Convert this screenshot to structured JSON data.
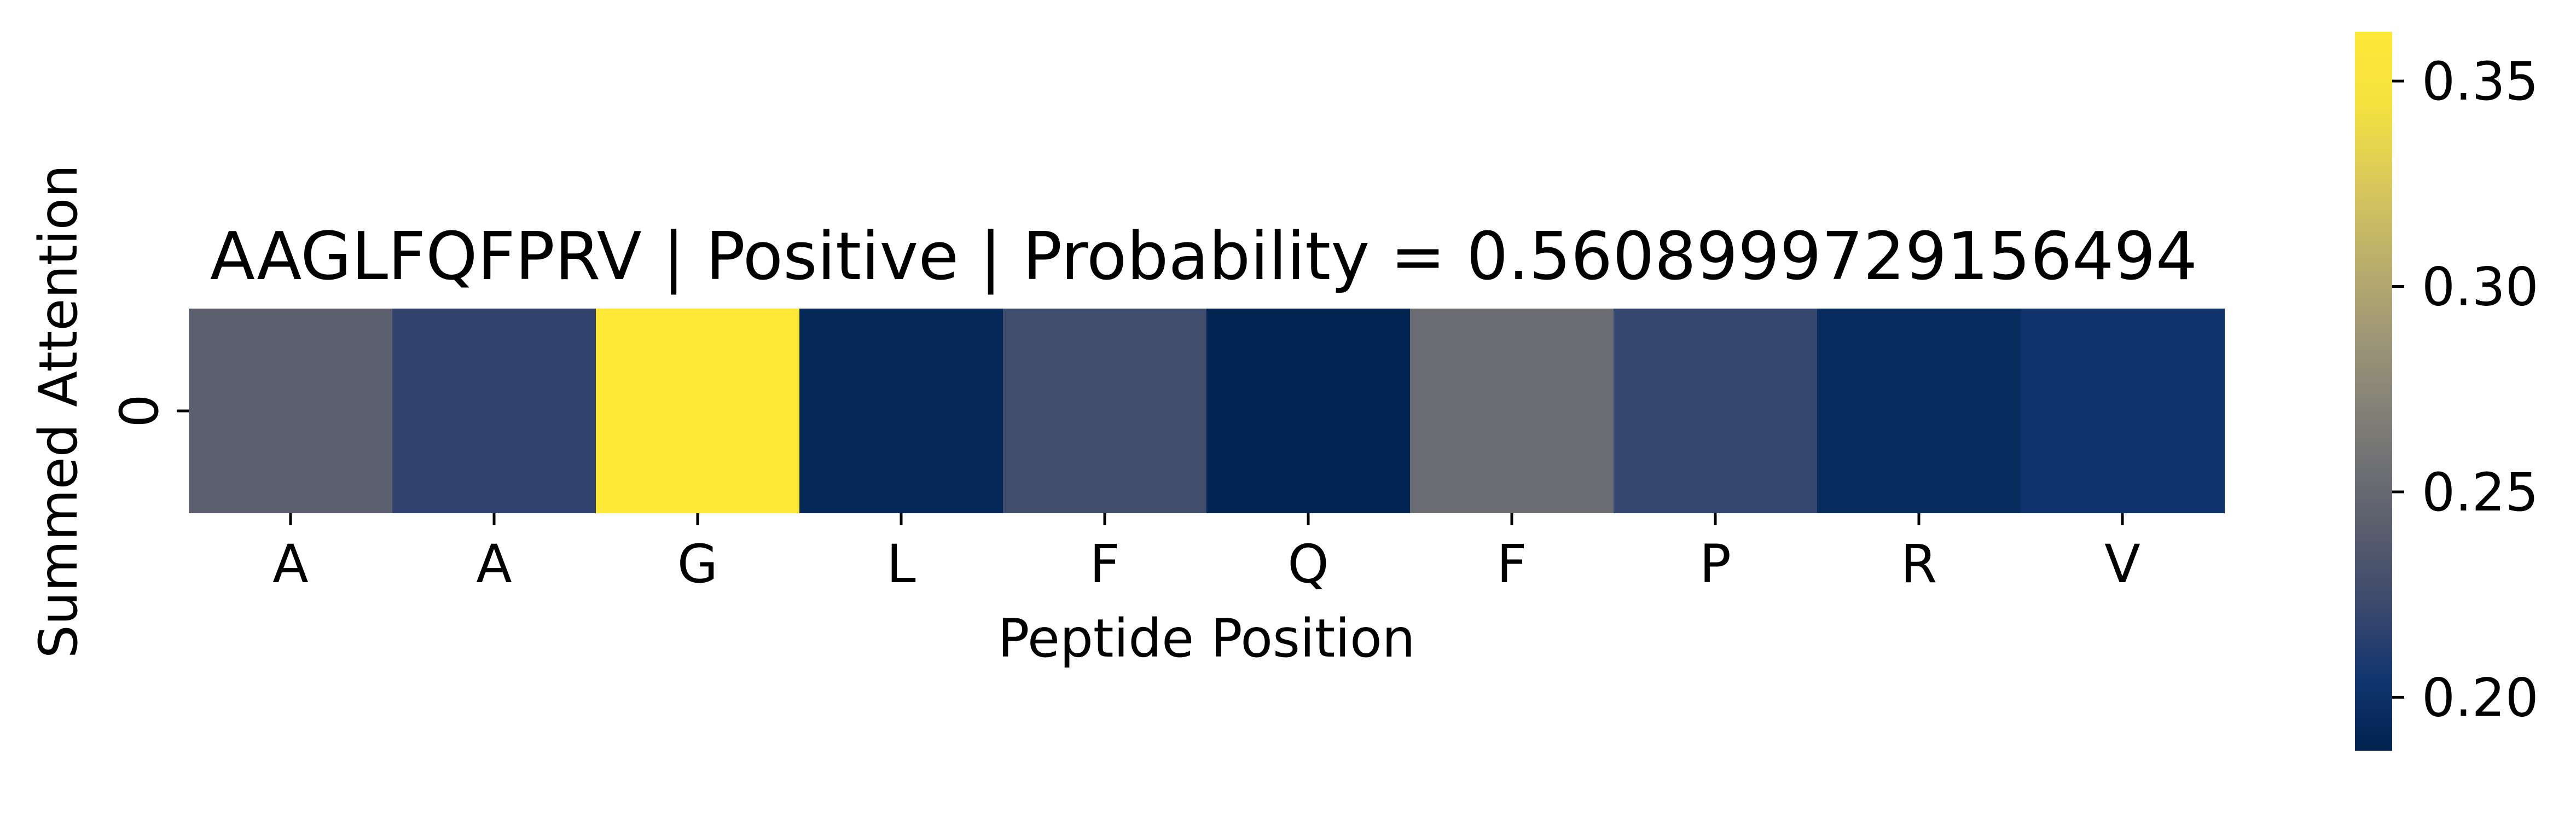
{
  "chart_data": {
    "type": "heatmap",
    "title": "AAGLFQFPRV | Positive | Probability = 0.5608999729156494",
    "xlabel": "Peptide Position",
    "ylabel": "Summed Attention",
    "x_ticklabels": [
      "A",
      "A",
      "G",
      "L",
      "F",
      "Q",
      "F",
      "P",
      "R",
      "V"
    ],
    "y_ticklabels": [
      "0"
    ],
    "values": [
      [
        0.243,
        0.218,
        0.362,
        0.193,
        0.226,
        0.189,
        0.253,
        0.219,
        0.195,
        0.203
      ]
    ],
    "colormap": "cividis",
    "colorbar": {
      "vmin": 0.187,
      "vmax": 0.362,
      "ticks": [
        0.2,
        0.25,
        0.3,
        0.35
      ],
      "ticklabels": [
        "0.20",
        "0.25",
        "0.30",
        "0.35"
      ]
    }
  }
}
